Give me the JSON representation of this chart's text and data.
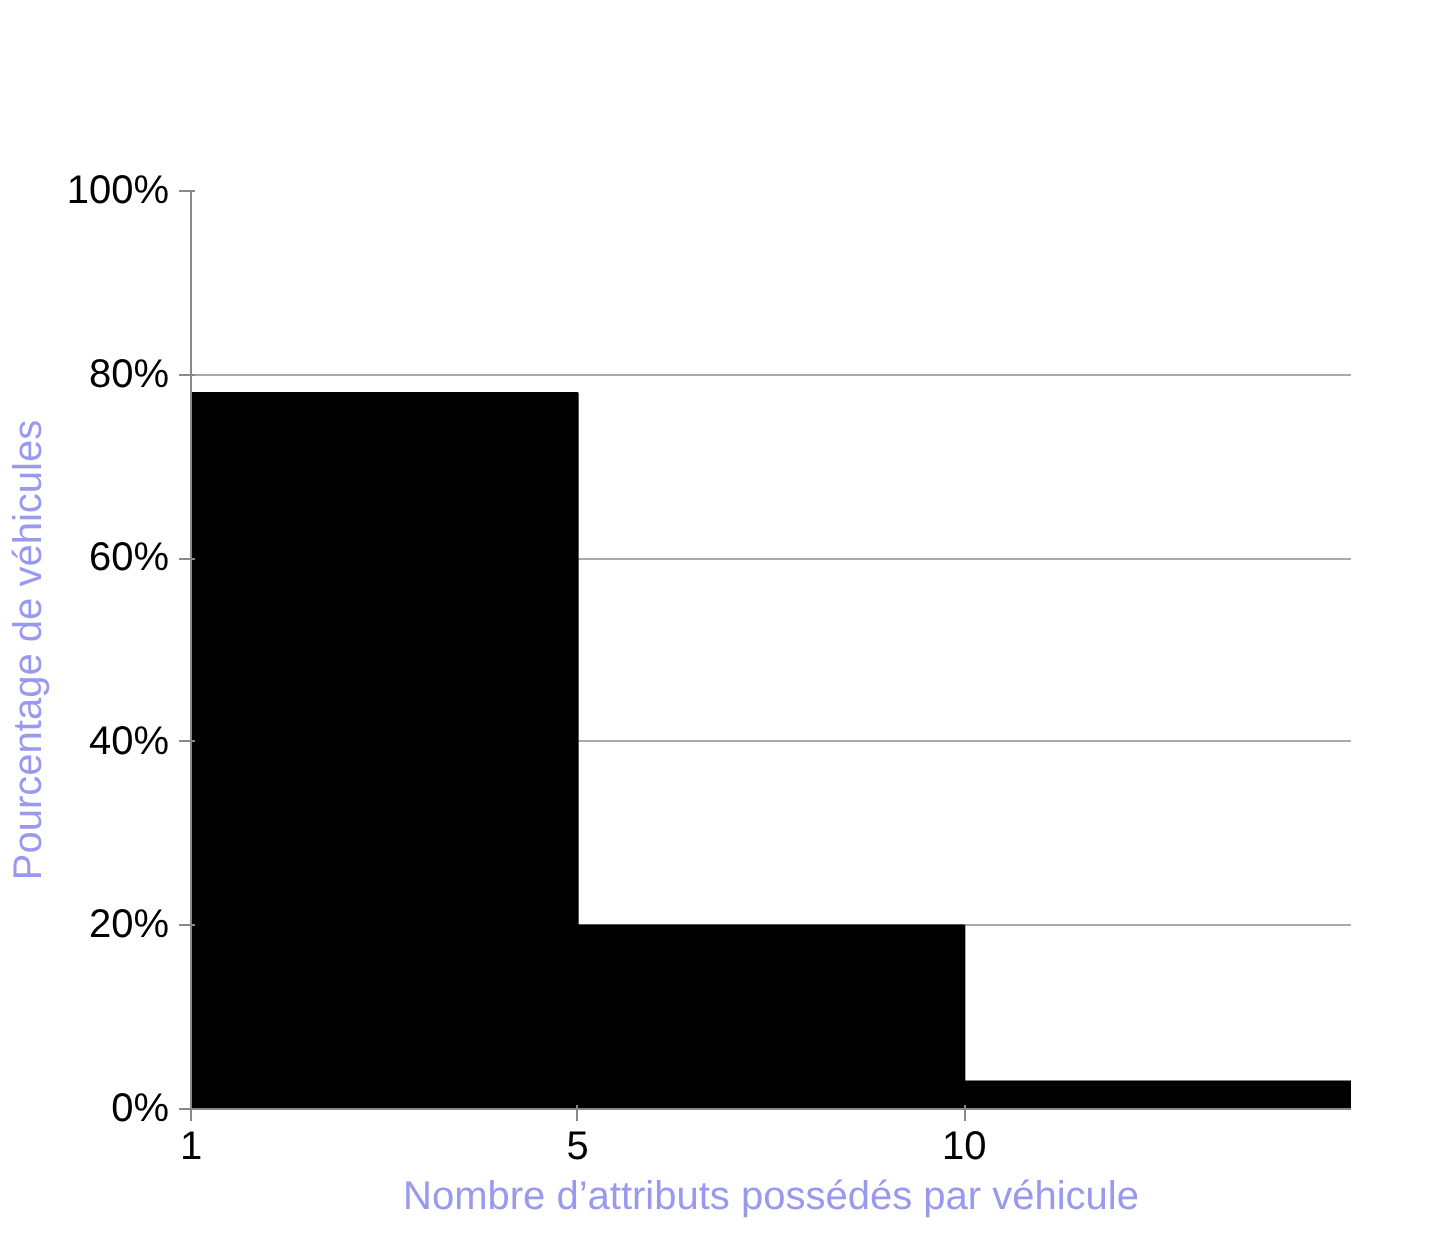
{
  "chart_data": {
    "type": "bar",
    "xlabel": "Nombre d’attributs possédés par véhicule",
    "ylabel": "Pourcentage de véhicules",
    "categories": [
      "1",
      "5",
      "10"
    ],
    "values": [
      78,
      20,
      3
    ],
    "color": "#000000",
    "ylim": [
      0,
      100
    ],
    "yticks": [
      {
        "value": 0,
        "label": "0%"
      },
      {
        "value": 20,
        "label": "20%"
      },
      {
        "value": 40,
        "label": "40%"
      },
      {
        "value": 60,
        "label": "60%"
      },
      {
        "value": 80,
        "label": "80%"
      },
      {
        "value": 100,
        "label": "100%"
      }
    ],
    "grid": "y"
  }
}
